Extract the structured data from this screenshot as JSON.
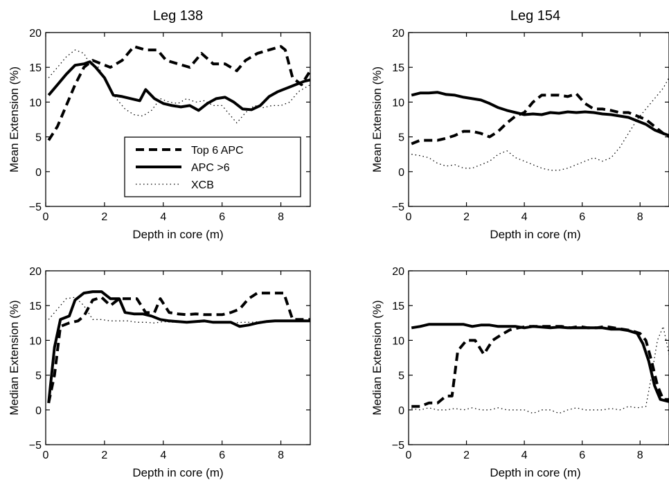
{
  "chart_data": [
    {
      "type": "line",
      "title": "Leg 138",
      "xlabel": "Depth in core (m)",
      "ylabel": "Mean Extension (%)",
      "xlim": [
        0,
        9
      ],
      "ylim": [
        -5,
        20
      ],
      "xticks": [
        0,
        2,
        4,
        6,
        8
      ],
      "yticks": [
        -5,
        0,
        5,
        10,
        15,
        20
      ],
      "legend": {
        "placement": "lower-left"
      },
      "series": [
        {
          "name": "Top 6 APC",
          "style": "dashed",
          "x": [
            0.1,
            0.4,
            0.7,
            1.0,
            1.3,
            1.6,
            1.9,
            2.2,
            2.6,
            3.0,
            3.4,
            3.8,
            4.1,
            4.5,
            4.9,
            5.3,
            5.7,
            6.1,
            6.5,
            6.8,
            7.2,
            7.6,
            8.0,
            8.15,
            8.4,
            8.7,
            9.0
          ],
          "y": [
            4.5,
            6.5,
            9.5,
            12.5,
            15.0,
            16.0,
            15.5,
            15.0,
            16.0,
            18.0,
            17.5,
            17.5,
            16.0,
            15.5,
            15.0,
            17.0,
            15.5,
            15.5,
            14.5,
            16.0,
            17.0,
            17.5,
            18.0,
            17.5,
            13.5,
            12.5,
            14.5
          ]
        },
        {
          "name": "APC >6",
          "style": "solid",
          "x": [
            0.1,
            0.4,
            0.7,
            1.0,
            1.3,
            1.5,
            1.7,
            2.0,
            2.3,
            2.6,
            2.9,
            3.2,
            3.4,
            3.7,
            4.0,
            4.3,
            4.6,
            4.9,
            5.2,
            5.5,
            5.8,
            6.1,
            6.4,
            6.7,
            7.0,
            7.3,
            7.6,
            7.9,
            8.2,
            8.5,
            8.8,
            9.0
          ],
          "y": [
            11.0,
            12.5,
            14.0,
            15.3,
            15.5,
            15.8,
            15.0,
            13.5,
            11.0,
            10.8,
            10.5,
            10.2,
            11.8,
            10.5,
            9.8,
            9.5,
            9.3,
            9.5,
            8.8,
            9.8,
            10.5,
            10.7,
            10.0,
            9.0,
            8.9,
            9.5,
            10.8,
            11.5,
            12.0,
            12.5,
            13.0,
            13.2
          ]
        },
        {
          "name": "XCB",
          "style": "dotted",
          "x": [
            0.1,
            0.4,
            0.7,
            1.0,
            1.3,
            1.5,
            1.8,
            2.1,
            2.4,
            2.7,
            3.0,
            3.3,
            3.6,
            3.9,
            4.2,
            4.5,
            4.8,
            5.1,
            5.4,
            5.7,
            6.0,
            6.3,
            6.5,
            6.8,
            7.1,
            7.4,
            7.7,
            8.0,
            8.3,
            8.6,
            9.0
          ],
          "y": [
            13.5,
            15.0,
            16.5,
            17.5,
            17.0,
            15.5,
            15.0,
            12.5,
            10.5,
            9.0,
            8.2,
            8.0,
            8.8,
            10.5,
            10.0,
            9.8,
            10.5,
            10.0,
            10.2,
            9.5,
            9.5,
            8.0,
            7.0,
            8.5,
            9.5,
            9.2,
            9.5,
            9.5,
            10.0,
            11.5,
            12.5
          ]
        }
      ]
    },
    {
      "type": "line",
      "title": "Leg 154",
      "xlabel": "Depth in core (m)",
      "ylabel": "Mean Extension (%)",
      "xlim": [
        0,
        9
      ],
      "ylim": [
        -5,
        20
      ],
      "xticks": [
        0,
        2,
        4,
        6,
        8
      ],
      "yticks": [
        -5,
        0,
        5,
        10,
        15,
        20
      ],
      "series": [
        {
          "name": "Top 6 APC",
          "style": "dashed",
          "x": [
            0.1,
            0.4,
            0.7,
            1.0,
            1.3,
            1.6,
            1.9,
            2.2,
            2.5,
            2.8,
            3.1,
            3.4,
            3.7,
            4.0,
            4.3,
            4.6,
            4.9,
            5.2,
            5.5,
            5.8,
            6.1,
            6.4,
            6.7,
            7.0,
            7.3,
            7.6,
            7.9,
            8.2,
            8.5,
            8.8,
            9.0
          ],
          "y": [
            4.0,
            4.5,
            4.5,
            4.5,
            4.8,
            5.2,
            5.8,
            5.8,
            5.5,
            5.0,
            5.8,
            7.0,
            8.0,
            8.5,
            10.0,
            11.0,
            11.0,
            11.0,
            10.8,
            11.2,
            9.8,
            9.0,
            9.0,
            8.8,
            8.5,
            8.5,
            8.0,
            7.5,
            6.5,
            5.5,
            5.0
          ]
        },
        {
          "name": "APC >6",
          "style": "solid",
          "x": [
            0.1,
            0.4,
            0.7,
            1.0,
            1.3,
            1.6,
            1.9,
            2.2,
            2.5,
            2.8,
            3.1,
            3.4,
            3.7,
            4.0,
            4.3,
            4.6,
            4.9,
            5.2,
            5.5,
            5.8,
            6.1,
            6.4,
            6.7,
            7.0,
            7.3,
            7.6,
            7.9,
            8.2,
            8.5,
            8.8,
            9.0
          ],
          "y": [
            11.0,
            11.3,
            11.3,
            11.4,
            11.1,
            11.0,
            10.7,
            10.5,
            10.3,
            9.8,
            9.2,
            8.8,
            8.5,
            8.2,
            8.3,
            8.2,
            8.5,
            8.4,
            8.6,
            8.5,
            8.6,
            8.5,
            8.3,
            8.2,
            8.0,
            7.8,
            7.3,
            6.8,
            6.0,
            5.5,
            5.2
          ]
        },
        {
          "name": "XCB",
          "style": "dotted",
          "x": [
            0.1,
            0.4,
            0.7,
            1.0,
            1.3,
            1.6,
            1.9,
            2.2,
            2.5,
            2.8,
            3.1,
            3.4,
            3.7,
            4.0,
            4.3,
            4.6,
            4.9,
            5.2,
            5.5,
            5.8,
            6.1,
            6.4,
            6.7,
            7.0,
            7.3,
            7.6,
            7.9,
            8.2,
            8.5,
            8.8,
            9.0
          ],
          "y": [
            2.5,
            2.3,
            2.0,
            1.2,
            0.8,
            1.0,
            0.5,
            0.5,
            1.0,
            1.5,
            2.5,
            3.0,
            2.0,
            1.5,
            1.0,
            0.5,
            0.2,
            0.2,
            0.5,
            1.0,
            1.5,
            2.0,
            1.5,
            2.0,
            3.5,
            5.5,
            7.5,
            9.0,
            10.5,
            12.0,
            13.5
          ]
        }
      ]
    },
    {
      "type": "line",
      "title": "",
      "xlabel": "Depth in core (m)",
      "ylabel": "Median Extension (%)",
      "xlim": [
        0,
        9
      ],
      "ylim": [
        -5,
        20
      ],
      "xticks": [
        0,
        2,
        4,
        6,
        8
      ],
      "yticks": [
        -5,
        0,
        5,
        10,
        15,
        20
      ],
      "series": [
        {
          "name": "Top 6 APC",
          "style": "dashed",
          "x": [
            0.1,
            0.3,
            0.5,
            0.8,
            1.1,
            1.3,
            1.6,
            1.9,
            2.2,
            2.5,
            2.8,
            3.1,
            3.4,
            3.7,
            3.9,
            4.2,
            4.5,
            4.8,
            5.1,
            5.4,
            5.7,
            6.0,
            6.3,
            6.6,
            6.9,
            7.2,
            7.5,
            7.8,
            8.1,
            8.4,
            8.7,
            9.0
          ],
          "y": [
            1.0,
            5.0,
            12.0,
            12.5,
            12.8,
            13.5,
            15.8,
            16.2,
            15.0,
            16.0,
            16.0,
            16.0,
            14.0,
            14.0,
            16.0,
            14.0,
            13.8,
            13.7,
            13.8,
            13.7,
            13.7,
            13.7,
            14.0,
            14.5,
            16.0,
            16.8,
            16.8,
            16.8,
            16.8,
            13.0,
            13.0,
            13.0
          ]
        },
        {
          "name": "APC >6",
          "style": "solid",
          "x": [
            0.1,
            0.3,
            0.5,
            0.8,
            1.0,
            1.3,
            1.6,
            1.9,
            2.2,
            2.5,
            2.7,
            3.0,
            3.3,
            3.6,
            3.9,
            4.2,
            4.5,
            4.8,
            5.1,
            5.4,
            5.7,
            6.0,
            6.3,
            6.6,
            6.9,
            7.2,
            7.5,
            7.8,
            8.1,
            8.4,
            8.7,
            9.0
          ],
          "y": [
            1.0,
            9.0,
            13.0,
            13.5,
            15.8,
            16.8,
            17.0,
            17.0,
            16.0,
            16.0,
            14.0,
            13.8,
            13.8,
            13.5,
            13.0,
            12.8,
            12.7,
            12.6,
            12.7,
            12.8,
            12.6,
            12.6,
            12.6,
            12.0,
            12.2,
            12.5,
            12.7,
            12.8,
            12.8,
            12.8,
            12.8,
            12.8
          ]
        },
        {
          "name": "XCB",
          "style": "dotted",
          "x": [
            0.1,
            0.4,
            0.7,
            1.0,
            1.3,
            1.6,
            1.9,
            2.2,
            2.5,
            2.8,
            3.1,
            3.4,
            3.7,
            4.0,
            4.3,
            4.6,
            4.9,
            5.2,
            5.5,
            5.8,
            6.1,
            6.4,
            6.7,
            7.0,
            7.3,
            7.6,
            7.9,
            8.2,
            8.5,
            8.8,
            9.0
          ],
          "y": [
            13.0,
            14.5,
            16.0,
            16.2,
            15.0,
            13.0,
            13.0,
            12.8,
            12.8,
            12.8,
            12.6,
            12.6,
            12.5,
            12.7,
            12.6,
            12.7,
            12.6,
            12.6,
            12.7,
            12.6,
            12.6,
            12.5,
            12.6,
            12.6,
            12.7,
            12.7,
            12.8,
            12.8,
            12.8,
            12.8,
            12.8
          ]
        }
      ]
    },
    {
      "type": "line",
      "title": "",
      "xlabel": "Depth in core (m)",
      "ylabel": "Median Extension (%)",
      "xlim": [
        0,
        9
      ],
      "ylim": [
        -5,
        20
      ],
      "xticks": [
        0,
        2,
        4,
        6,
        8
      ],
      "yticks": [
        -5,
        0,
        5,
        10,
        15,
        20
      ],
      "series": [
        {
          "name": "Top 6 APC",
          "style": "dashed",
          "x": [
            0.1,
            0.4,
            0.7,
            1.0,
            1.3,
            1.5,
            1.7,
            2.0,
            2.3,
            2.6,
            2.9,
            3.2,
            3.5,
            3.8,
            4.1,
            4.4,
            4.7,
            5.0,
            5.3,
            5.6,
            5.9,
            6.2,
            6.5,
            6.8,
            7.1,
            7.4,
            7.7,
            8.0,
            8.2,
            8.4,
            8.6,
            8.8,
            9.0
          ],
          "y": [
            0.5,
            0.5,
            1.0,
            1.0,
            2.0,
            2.0,
            8.5,
            10.0,
            10.0,
            8.0,
            10.0,
            10.8,
            11.5,
            11.8,
            12.0,
            12.0,
            12.0,
            12.0,
            12.0,
            11.8,
            12.0,
            11.8,
            11.8,
            12.0,
            11.8,
            11.6,
            11.4,
            11.0,
            10.0,
            7.0,
            3.5,
            1.5,
            1.5
          ]
        },
        {
          "name": "APC >6",
          "style": "solid",
          "x": [
            0.1,
            0.4,
            0.7,
            1.0,
            1.3,
            1.6,
            1.9,
            2.2,
            2.5,
            2.8,
            3.1,
            3.4,
            3.7,
            4.0,
            4.3,
            4.6,
            4.9,
            5.2,
            5.5,
            5.8,
            6.1,
            6.4,
            6.7,
            7.0,
            7.3,
            7.6,
            7.9,
            8.1,
            8.3,
            8.5,
            8.7,
            9.0
          ],
          "y": [
            11.8,
            12.0,
            12.3,
            12.3,
            12.3,
            12.3,
            12.3,
            12.0,
            12.2,
            12.2,
            12.0,
            12.0,
            12.0,
            11.8,
            12.0,
            11.9,
            11.8,
            11.9,
            11.8,
            11.8,
            11.8,
            11.8,
            11.8,
            11.6,
            11.6,
            11.4,
            11.0,
            9.5,
            7.0,
            3.5,
            1.5,
            1.2
          ]
        },
        {
          "name": "XCB",
          "style": "dotted",
          "x": [
            0.1,
            0.4,
            0.7,
            1.0,
            1.3,
            1.6,
            1.9,
            2.2,
            2.5,
            2.8,
            3.1,
            3.4,
            3.7,
            4.0,
            4.3,
            4.6,
            4.9,
            5.2,
            5.5,
            5.8,
            6.1,
            6.4,
            6.7,
            7.0,
            7.3,
            7.6,
            7.9,
            8.2,
            8.4,
            8.6,
            8.8,
            9.0
          ],
          "y": [
            0.2,
            0.0,
            0.3,
            0.0,
            0.0,
            0.2,
            0.0,
            0.3,
            0.0,
            0.0,
            0.3,
            0.0,
            0.0,
            0.0,
            -0.5,
            0.0,
            0.0,
            -0.5,
            0.0,
            0.3,
            0.0,
            0.0,
            0.0,
            0.2,
            0.0,
            0.5,
            0.3,
            0.5,
            5.0,
            10.0,
            12.0,
            8.0
          ]
        }
      ]
    }
  ]
}
